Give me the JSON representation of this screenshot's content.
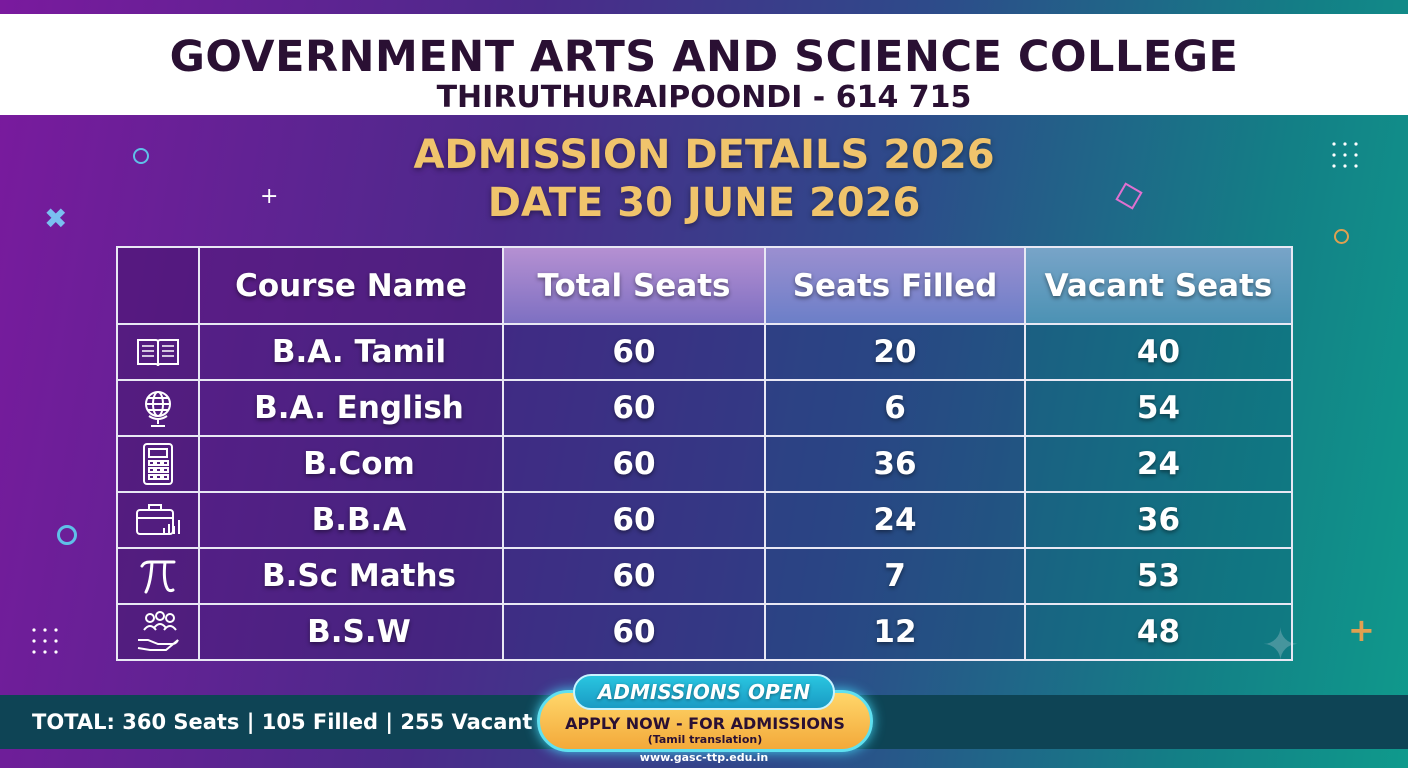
{
  "header": {
    "college_name": "GOVERNMENT ARTS AND SCIENCE COLLEGE",
    "college_place": "THIRUTHURAIPOONDI - 614 715"
  },
  "admission": {
    "title": "ADMISSION DETAILS 2026",
    "date": "DATE 30 JUNE 2026"
  },
  "table": {
    "columns": [
      "Course Name",
      "Total Seats",
      "Seats Filled",
      "Vacant Seats"
    ],
    "rows": [
      {
        "icon": "open-book-icon",
        "course": "B.A. Tamil",
        "total": "60",
        "filled": "20",
        "vacant": "40"
      },
      {
        "icon": "globe-icon",
        "course": "B.A. English",
        "total": "60",
        "filled": "6",
        "vacant": "54"
      },
      {
        "icon": "calculator-icon",
        "course": "B.Com",
        "total": "60",
        "filled": "36",
        "vacant": "24"
      },
      {
        "icon": "briefcase-chart-icon",
        "course": "B.B.A",
        "total": "60",
        "filled": "24",
        "vacant": "36"
      },
      {
        "icon": "pi-icon",
        "course": "B.Sc Maths",
        "total": "60",
        "filled": "7",
        "vacant": "53"
      },
      {
        "icon": "people-hand-icon",
        "course": "B.S.W",
        "total": "60",
        "filled": "12",
        "vacant": "48"
      }
    ]
  },
  "footer": {
    "total_summary": "TOTAL: 360 Seats | 105 Filled | 255 Vacant",
    "cta_badge": "ADMISSIONS OPEN",
    "cta_main": "APPLY NOW - FOR ADMISSIONS",
    "cta_sub": "(Tamil translation)",
    "website": "www.gasc-ttp.edu.in"
  },
  "colors": {
    "title_gold": "#f0c46c",
    "header_text": "#2a1033",
    "cta_orange": "#f3a93a",
    "cta_cyan": "#29c5e0"
  }
}
